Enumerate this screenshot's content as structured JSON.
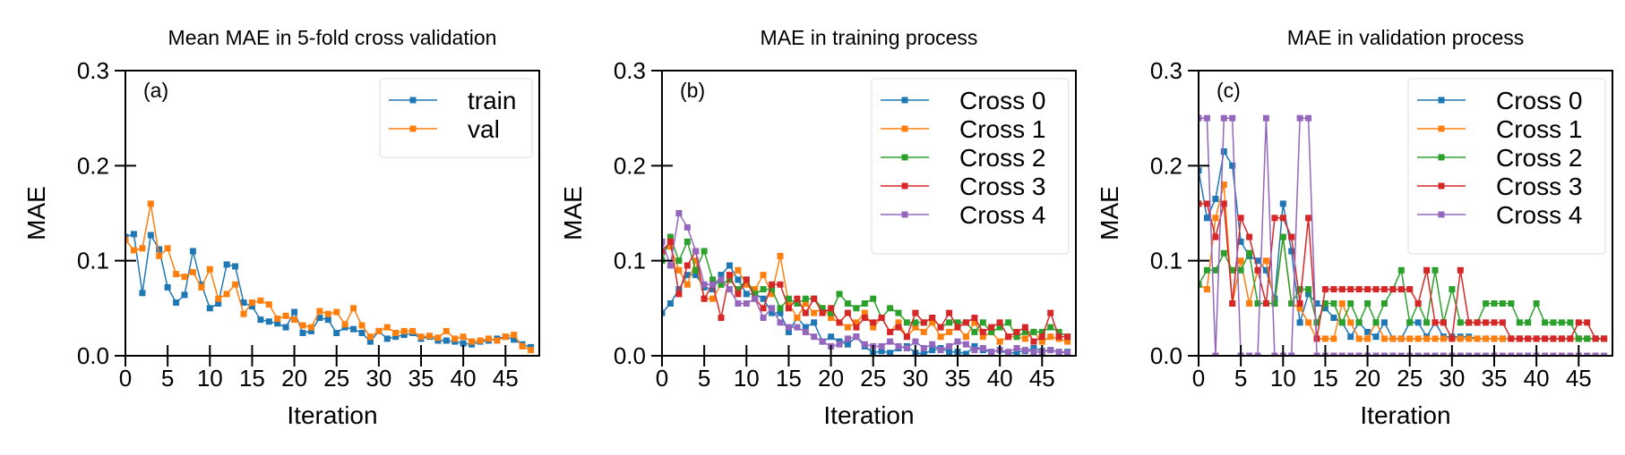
{
  "chart_data": [
    {
      "type": "line",
      "panel": "(a)",
      "title": "Mean MAE in 5-fold cross validation",
      "xlabel": "Iteration",
      "ylabel": "MAE",
      "xlim": [
        0,
        49
      ],
      "ylim": [
        0,
        0.3
      ],
      "xticks": [
        0,
        5,
        10,
        15,
        20,
        25,
        30,
        35,
        40,
        45
      ],
      "yticks": [
        0.0,
        0.1,
        0.2,
        0.3
      ],
      "legend_position": "top-right",
      "grid": false,
      "series": [
        {
          "name": "train",
          "color": "#1f77b4",
          "values": [
            0.125,
            0.128,
            0.066,
            0.127,
            0.112,
            0.072,
            0.056,
            0.064,
            0.11,
            0.075,
            0.05,
            0.055,
            0.096,
            0.094,
            0.056,
            0.052,
            0.038,
            0.036,
            0.034,
            0.03,
            0.046,
            0.024,
            0.026,
            0.04,
            0.038,
            0.024,
            0.03,
            0.028,
            0.024,
            0.015,
            0.026,
            0.018,
            0.02,
            0.022,
            0.024,
            0.018,
            0.02,
            0.016,
            0.016,
            0.015,
            0.013,
            0.012,
            0.015,
            0.016,
            0.018,
            0.02,
            0.017,
            0.012,
            0.009
          ]
        },
        {
          "name": "val",
          "color": "#ff7f0e",
          "values": [
            0.122,
            0.111,
            0.113,
            0.16,
            0.105,
            0.113,
            0.086,
            0.083,
            0.088,
            0.072,
            0.091,
            0.06,
            0.065,
            0.075,
            0.044,
            0.056,
            0.058,
            0.054,
            0.039,
            0.042,
            0.038,
            0.032,
            0.03,
            0.047,
            0.044,
            0.046,
            0.033,
            0.05,
            0.032,
            0.02,
            0.026,
            0.03,
            0.024,
            0.026,
            0.026,
            0.02,
            0.021,
            0.019,
            0.026,
            0.018,
            0.02,
            0.015,
            0.016,
            0.018,
            0.016,
            0.02,
            0.022,
            0.01,
            0.006
          ]
        }
      ]
    },
    {
      "type": "line",
      "panel": "(b)",
      "title": "MAE in training process",
      "xlabel": "Iteration",
      "ylabel": "MAE",
      "xlim": [
        0,
        49
      ],
      "ylim": [
        0,
        0.3
      ],
      "xticks": [
        0,
        5,
        10,
        15,
        20,
        25,
        30,
        35,
        40,
        45
      ],
      "yticks": [
        0.0,
        0.1,
        0.2,
        0.3
      ],
      "legend_position": "top-right",
      "grid": false,
      "series": [
        {
          "name": "Cross 0",
          "color": "#1f77b4",
          "values": [
            0.045,
            0.055,
            0.07,
            0.085,
            0.085,
            0.072,
            0.07,
            0.085,
            0.095,
            0.08,
            0.065,
            0.065,
            0.06,
            0.045,
            0.045,
            0.025,
            0.04,
            0.03,
            0.035,
            0.015,
            0.02,
            0.015,
            0.012,
            0.02,
            0.01,
            0.003,
            0.005,
            0.003,
            0.008,
            0.01,
            0.003,
            0.002,
            0.006,
            0.008,
            0.004,
            0.004,
            0.002,
            0.01,
            0.006,
            0.004,
            0.006,
            0.002,
            0.004,
            0.005,
            0.008,
            0.005,
            0.006,
            0.004,
            0.004
          ]
        },
        {
          "name": "Cross 1",
          "color": "#ff7f0e",
          "values": [
            0.11,
            0.115,
            0.09,
            0.075,
            0.1,
            0.06,
            0.06,
            0.075,
            0.08,
            0.09,
            0.075,
            0.07,
            0.085,
            0.065,
            0.105,
            0.055,
            0.04,
            0.055,
            0.045,
            0.05,
            0.04,
            0.035,
            0.03,
            0.035,
            0.045,
            0.03,
            0.04,
            0.025,
            0.035,
            0.02,
            0.03,
            0.025,
            0.035,
            0.02,
            0.025,
            0.03,
            0.02,
            0.035,
            0.02,
            0.025,
            0.015,
            0.02,
            0.02,
            0.018,
            0.025,
            0.015,
            0.02,
            0.018,
            0.015
          ]
        },
        {
          "name": "Cross 2",
          "color": "#2ca02c",
          "values": [
            0.1,
            0.125,
            0.1,
            0.12,
            0.09,
            0.11,
            0.08,
            0.075,
            0.08,
            0.07,
            0.08,
            0.065,
            0.07,
            0.07,
            0.05,
            0.06,
            0.055,
            0.06,
            0.06,
            0.05,
            0.045,
            0.065,
            0.055,
            0.05,
            0.055,
            0.06,
            0.04,
            0.05,
            0.045,
            0.035,
            0.035,
            0.035,
            0.04,
            0.03,
            0.035,
            0.035,
            0.035,
            0.025,
            0.035,
            0.025,
            0.03,
            0.035,
            0.02,
            0.025,
            0.025,
            0.025,
            0.03,
            0.025,
            0.02
          ]
        },
        {
          "name": "Cross 3",
          "color": "#d62728",
          "values": [
            0.11,
            0.12,
            0.065,
            0.095,
            0.11,
            0.06,
            0.075,
            0.04,
            0.085,
            0.065,
            0.08,
            0.06,
            0.05,
            0.075,
            0.075,
            0.05,
            0.06,
            0.045,
            0.06,
            0.045,
            0.05,
            0.035,
            0.045,
            0.03,
            0.04,
            0.035,
            0.04,
            0.025,
            0.03,
            0.02,
            0.045,
            0.035,
            0.04,
            0.03,
            0.045,
            0.03,
            0.035,
            0.04,
            0.025,
            0.03,
            0.035,
            0.02,
            0.025,
            0.03,
            0.015,
            0.02,
            0.045,
            0.02,
            0.02
          ]
        },
        {
          "name": "Cross 4",
          "color": "#9467bd",
          "values": [
            0.12,
            0.095,
            0.15,
            0.135,
            0.11,
            0.075,
            0.075,
            0.08,
            0.07,
            0.055,
            0.055,
            0.06,
            0.04,
            0.05,
            0.035,
            0.03,
            0.03,
            0.025,
            0.02,
            0.015,
            0.01,
            0.012,
            0.018,
            0.02,
            0.012,
            0.01,
            0.01,
            0.015,
            0.01,
            0.008,
            0.015,
            0.008,
            0.012,
            0.006,
            0.01,
            0.015,
            0.012,
            0.006,
            0.008,
            0.004,
            0.006,
            0.004,
            0.008,
            0.006,
            0.004,
            0.004,
            0.006,
            0.004,
            0.003
          ]
        }
      ]
    },
    {
      "type": "line",
      "panel": "(c)",
      "title": "MAE in validation process",
      "xlabel": "Iteration",
      "ylabel": "MAE",
      "xlim": [
        0,
        49
      ],
      "ylim": [
        0,
        0.3
      ],
      "xticks": [
        0,
        5,
        10,
        15,
        20,
        25,
        30,
        35,
        40,
        45
      ],
      "yticks": [
        0.0,
        0.1,
        0.2,
        0.3
      ],
      "legend_position": "top-right",
      "grid": false,
      "series": [
        {
          "name": "Cross 0",
          "color": "#1f77b4",
          "values": [
            0.195,
            0.145,
            0.165,
            0.215,
            0.2,
            0.12,
            0.105,
            0.1,
            0.09,
            0.06,
            0.16,
            0.11,
            0.035,
            0.065,
            0.055,
            0.05,
            0.04,
            0.035,
            0.02,
            0.035,
            0.025,
            0.02,
            0.035,
            0.018,
            0.018,
            0.035,
            0.035,
            0.02,
            0.035,
            0.02,
            0.02,
            0.02,
            0.02,
            0.018,
            0.018,
            0.018,
            0.018,
            0.018,
            0.018,
            0.018,
            0.018,
            0.018,
            0.018,
            0.018,
            0.018,
            0.018,
            0.018,
            0.018,
            0.018
          ]
        },
        {
          "name": "Cross 1",
          "color": "#ff7f0e",
          "values": [
            0.075,
            0.07,
            0.145,
            0.18,
            0.055,
            0.1,
            0.055,
            0.09,
            0.1,
            0.055,
            0.125,
            0.055,
            0.05,
            0.035,
            0.018,
            0.018,
            0.018,
            0.055,
            0.035,
            0.018,
            0.018,
            0.035,
            0.018,
            0.018,
            0.018,
            0.018,
            0.018,
            0.018,
            0.018,
            0.018,
            0.018,
            0.018,
            0.018,
            0.018,
            0.018,
            0.018,
            0.018,
            0.018,
            0.018,
            0.018,
            0.018,
            0.018,
            0.018,
            0.018,
            0.018,
            0.018,
            0.018,
            0.018,
            0.018
          ]
        },
        {
          "name": "Cross 2",
          "color": "#2ca02c",
          "values": [
            0.075,
            0.09,
            0.09,
            0.108,
            0.09,
            0.09,
            0.108,
            0.055,
            0.055,
            0.055,
            0.125,
            0.055,
            0.07,
            0.07,
            0.035,
            0.055,
            0.055,
            0.035,
            0.055,
            0.035,
            0.055,
            0.035,
            0.055,
            0.07,
            0.09,
            0.035,
            0.055,
            0.035,
            0.09,
            0.035,
            0.07,
            0.035,
            0.035,
            0.035,
            0.055,
            0.055,
            0.055,
            0.055,
            0.035,
            0.035,
            0.055,
            0.035,
            0.035,
            0.035,
            0.035,
            0.018,
            0.018,
            0.018,
            0.018
          ]
        },
        {
          "name": "Cross 3",
          "color": "#d62728",
          "values": [
            0.16,
            0.16,
            0.125,
            0.16,
            0.055,
            0.145,
            0.125,
            0.09,
            0.055,
            0.145,
            0.145,
            0.125,
            0.055,
            0.145,
            0.018,
            0.07,
            0.07,
            0.07,
            0.07,
            0.07,
            0.07,
            0.07,
            0.07,
            0.07,
            0.07,
            0.07,
            0.055,
            0.09,
            0.035,
            0.035,
            0.018,
            0.09,
            0.035,
            0.035,
            0.035,
            0.035,
            0.035,
            0.018,
            0.018,
            0.018,
            0.018,
            0.018,
            0.018,
            0.018,
            0.018,
            0.035,
            0.035,
            0.018,
            0.018
          ]
        },
        {
          "name": "Cross 4",
          "color": "#9467bd",
          "values": [
            0.25,
            0.25,
            0.0,
            0.25,
            0.25,
            0.0,
            0.0,
            0.0,
            0.25,
            0.0,
            0.0,
            0.0,
            0.25,
            0.25,
            0.0,
            0.0,
            0.0,
            0.0,
            0.0,
            0.0,
            0.0,
            0.0,
            0.0,
            0.0,
            0.0,
            0.0,
            0.0,
            0.0,
            0.0,
            0.0,
            0.0,
            0.0,
            0.0,
            0.0,
            0.0,
            0.0,
            0.0,
            0.0,
            0.0,
            0.0,
            0.0,
            0.0,
            0.0,
            0.0,
            0.0,
            0.0,
            0.0,
            0.0,
            0.0
          ]
        }
      ]
    }
  ]
}
